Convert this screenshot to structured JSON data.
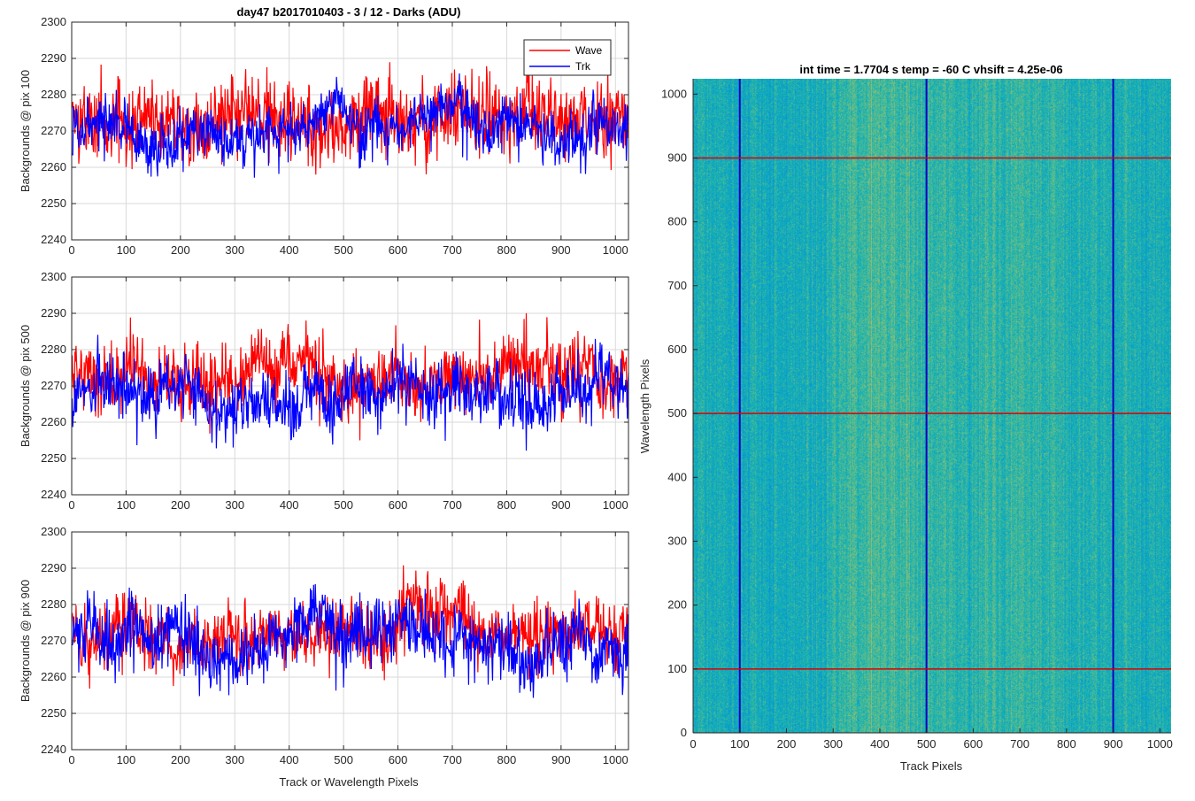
{
  "figure": {
    "title": "day47 b2017010403 - 3 / 12 - Darks (ADU)",
    "heatmap_title": "int time = 1.7704 s    temp = -60 C    vhsift = 4.25e-06"
  },
  "colors": {
    "wave": "#ff0000",
    "trk": "#0000ff",
    "marker_vertical": "#0000cc",
    "marker_horizontal": "#dd0000"
  },
  "chart_data": [
    {
      "type": "line",
      "panel": "top",
      "ylabel": "Backgrounds @ pix 100",
      "xlabel": "",
      "xlim": [
        0,
        1024
      ],
      "ylim": [
        2240,
        2300
      ],
      "xticks": [
        0,
        100,
        200,
        300,
        400,
        500,
        600,
        700,
        800,
        900,
        1000
      ],
      "yticks": [
        2240,
        2250,
        2260,
        2270,
        2280,
        2290,
        2300
      ],
      "grid": true,
      "legend": "top-right",
      "series": [
        {
          "name": "Wave",
          "mean": 2273,
          "noise": 7,
          "min": 2245,
          "max": 2295
        },
        {
          "name": "Trk",
          "mean": 2271,
          "noise": 5,
          "min": 2246,
          "max": 2290
        }
      ]
    },
    {
      "type": "line",
      "panel": "middle",
      "ylabel": "Backgrounds @ pix 500",
      "xlabel": "",
      "xlim": [
        0,
        1024
      ],
      "ylim": [
        2240,
        2300
      ],
      "xticks": [
        0,
        100,
        200,
        300,
        400,
        500,
        600,
        700,
        800,
        900,
        1000
      ],
      "yticks": [
        2240,
        2250,
        2260,
        2270,
        2280,
        2290,
        2300
      ],
      "grid": true,
      "series": [
        {
          "name": "Wave",
          "mean": 2274,
          "noise": 6,
          "min": 2248,
          "max": 2292
        },
        {
          "name": "Trk",
          "mean": 2268,
          "noise": 6,
          "min": 2243,
          "max": 2291
        }
      ]
    },
    {
      "type": "line",
      "panel": "bottom",
      "ylabel": "Backgrounds @ pix 900",
      "xlabel": "Track or Wavelength Pixels",
      "xlim": [
        0,
        1024
      ],
      "ylim": [
        2240,
        2300
      ],
      "xticks": [
        0,
        100,
        200,
        300,
        400,
        500,
        600,
        700,
        800,
        900,
        1000
      ],
      "yticks": [
        2240,
        2250,
        2260,
        2270,
        2280,
        2290,
        2300
      ],
      "grid": true,
      "series": [
        {
          "name": "Wave",
          "mean": 2274,
          "noise": 6,
          "min": 2248,
          "max": 2296
        },
        {
          "name": "Trk",
          "mean": 2270,
          "noise": 6,
          "min": 2248,
          "max": 2297
        }
      ]
    },
    {
      "type": "heatmap",
      "panel": "right",
      "title": "int time = 1.7704 s    temp = -60 C    vhsift = 4.25e-06",
      "xlabel": "Track Pixels",
      "ylabel": "Wavelength Pixels",
      "xlim": [
        0,
        1024
      ],
      "ylim": [
        0,
        1024
      ],
      "xticks": [
        0,
        100,
        200,
        300,
        400,
        500,
        600,
        700,
        800,
        900,
        1000
      ],
      "yticks": [
        0,
        100,
        200,
        300,
        400,
        500,
        600,
        700,
        800,
        900,
        1000
      ],
      "vertical_markers": [
        100,
        500,
        900
      ],
      "horizontal_markers": [
        100,
        500,
        900
      ],
      "colormap": "parula"
    }
  ],
  "legend": {
    "entries": [
      "Wave",
      "Trk"
    ]
  }
}
